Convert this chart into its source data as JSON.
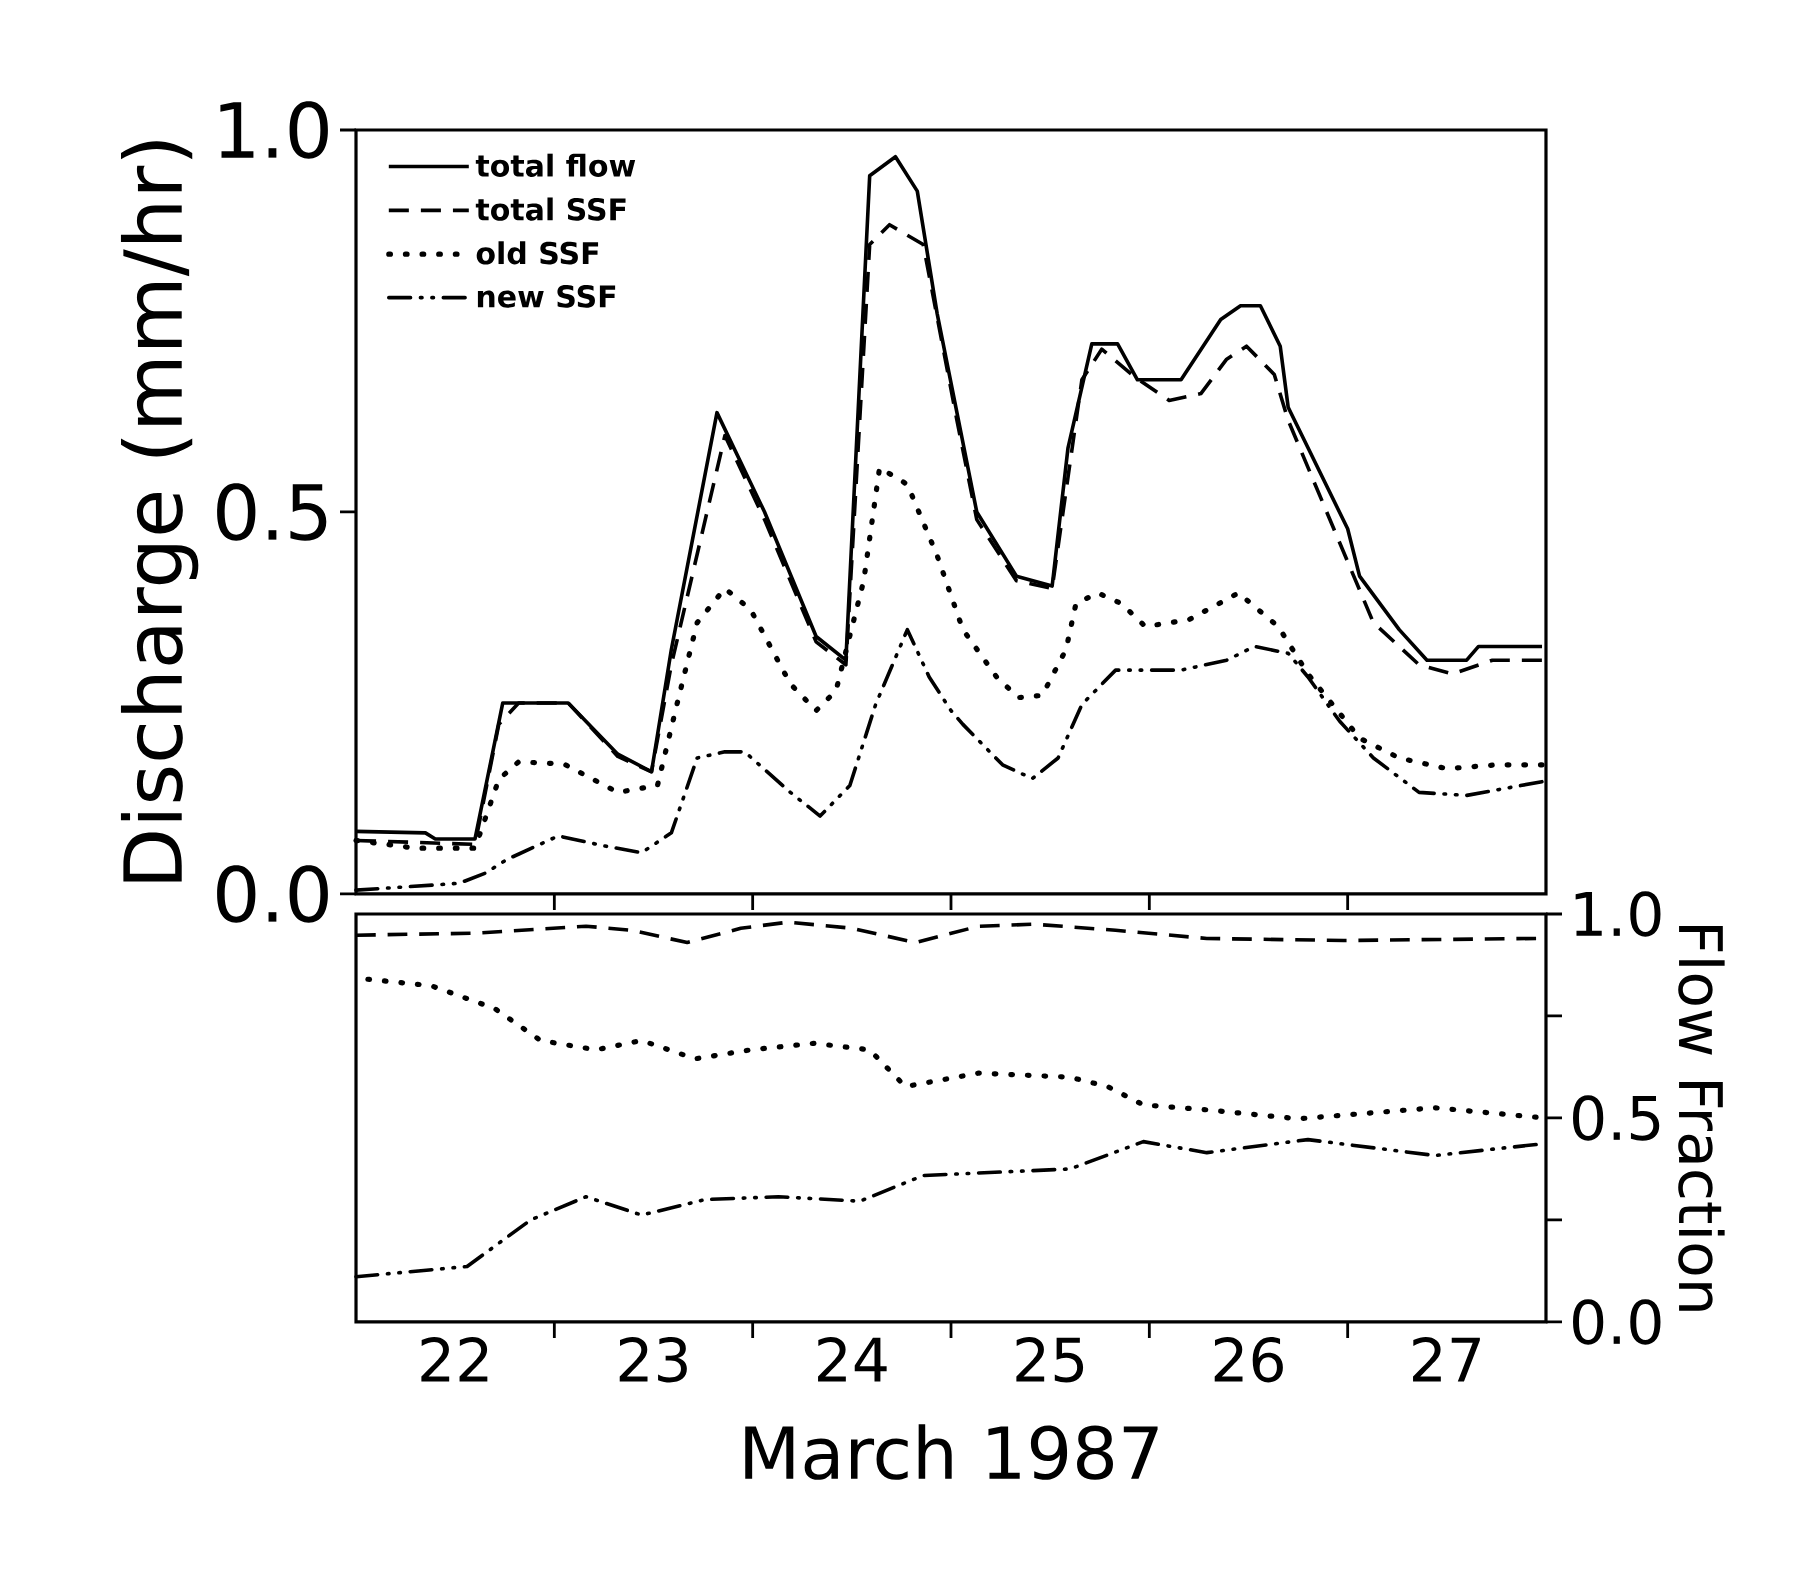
{
  "chart_data": [
    {
      "type": "line",
      "ylabel": "Discharge (mm/hr)",
      "xlim": [
        22,
        28
      ],
      "xticks": [
        {
          "value": 23,
          "label": null
        },
        {
          "value": 24,
          "label": null
        },
        {
          "value": 25,
          "label": null
        },
        {
          "value": 26,
          "label": null
        },
        {
          "value": 27,
          "label": null
        }
      ],
      "ylim": [
        0,
        1
      ],
      "yticks": [
        {
          "value": 0,
          "label": "0.0"
        },
        {
          "value": 0.5,
          "label": "0.5"
        },
        {
          "value": 1,
          "label": "1.0"
        }
      ],
      "tick_labels": "y",
      "legend": "top left",
      "series": [
        {
          "name": "total flow",
          "color": "#000000",
          "line_style": "solid",
          "x": [
            22.0,
            22.35,
            22.4,
            22.6,
            22.74,
            23.07,
            23.32,
            23.49,
            23.59,
            23.82,
            24.06,
            24.32,
            24.47,
            24.59,
            24.72,
            24.83,
            24.93,
            25.03,
            25.13,
            25.33,
            25.51,
            25.59,
            25.71,
            25.84,
            25.94,
            26.16,
            26.36,
            26.46,
            26.56,
            26.66,
            26.7,
            27.0,
            27.06,
            27.26,
            27.4,
            27.6,
            27.66,
            27.98
          ],
          "values": [
            0.082,
            0.08,
            0.072,
            0.072,
            0.25,
            0.25,
            0.183,
            0.16,
            0.32,
            0.63,
            0.5,
            0.337,
            0.306,
            0.94,
            0.965,
            0.92,
            0.76,
            0.63,
            0.5,
            0.416,
            0.403,
            0.584,
            0.72,
            0.72,
            0.673,
            0.673,
            0.752,
            0.77,
            0.77,
            0.717,
            0.637,
            0.478,
            0.416,
            0.346,
            0.306,
            0.306,
            0.324,
            0.324
          ]
        },
        {
          "name": "total SSF",
          "color": "#000000",
          "line_style": "dashed",
          "x": [
            22.0,
            22.6,
            22.72,
            22.82,
            23.07,
            23.32,
            23.49,
            23.59,
            23.86,
            24.06,
            24.32,
            24.47,
            24.59,
            24.69,
            24.86,
            25.03,
            25.13,
            25.33,
            25.51,
            25.66,
            25.76,
            25.93,
            26.1,
            26.26,
            26.39,
            26.49,
            26.63,
            26.7,
            26.93,
            27.13,
            27.36,
            27.53,
            27.73,
            27.98
          ],
          "values": [
            0.07,
            0.065,
            0.222,
            0.25,
            0.25,
            0.18,
            0.16,
            0.3,
            0.6,
            0.49,
            0.33,
            0.3,
            0.85,
            0.876,
            0.85,
            0.62,
            0.49,
            0.41,
            0.4,
            0.673,
            0.713,
            0.676,
            0.646,
            0.655,
            0.7,
            0.717,
            0.68,
            0.62,
            0.478,
            0.355,
            0.3,
            0.288,
            0.306,
            0.306
          ]
        },
        {
          "name": "old SSF",
          "color": "#000000",
          "line_style": "dotted",
          "x": [
            22.0,
            22.3,
            22.6,
            22.72,
            22.82,
            23.05,
            23.32,
            23.52,
            23.62,
            23.72,
            23.86,
            23.99,
            24.19,
            24.32,
            24.42,
            24.56,
            24.64,
            24.78,
            24.93,
            25.06,
            25.23,
            25.34,
            25.46,
            25.58,
            25.63,
            25.74,
            25.86,
            25.98,
            26.2,
            26.45,
            26.65,
            26.8,
            27.06,
            27.26,
            27.5,
            27.75,
            27.98
          ],
          "values": [
            0.07,
            0.06,
            0.06,
            0.15,
            0.173,
            0.17,
            0.133,
            0.142,
            0.25,
            0.355,
            0.4,
            0.372,
            0.275,
            0.24,
            0.266,
            0.41,
            0.558,
            0.536,
            0.443,
            0.346,
            0.284,
            0.257,
            0.26,
            0.32,
            0.38,
            0.394,
            0.38,
            0.35,
            0.359,
            0.394,
            0.35,
            0.288,
            0.204,
            0.178,
            0.164,
            0.169,
            0.169
          ]
        },
        {
          "name": "new SSF",
          "color": "#000000",
          "line_style": "dashdotdotted",
          "x": [
            22.0,
            22.52,
            22.65,
            22.76,
            23.02,
            23.25,
            23.44,
            23.59,
            23.72,
            23.86,
            23.96,
            24.19,
            24.34,
            24.49,
            24.62,
            24.78,
            24.89,
            25.0,
            25.06,
            25.26,
            25.41,
            25.54,
            25.66,
            25.83,
            26.16,
            26.39,
            26.53,
            26.7,
            26.8,
            26.96,
            27.13,
            27.36,
            27.6,
            27.98
          ],
          "values": [
            0.005,
            0.014,
            0.027,
            0.045,
            0.076,
            0.063,
            0.054,
            0.08,
            0.178,
            0.186,
            0.186,
            0.133,
            0.102,
            0.142,
            0.248,
            0.346,
            0.284,
            0.24,
            0.222,
            0.169,
            0.151,
            0.178,
            0.248,
            0.293,
            0.293,
            0.306,
            0.324,
            0.315,
            0.284,
            0.226,
            0.178,
            0.133,
            0.129,
            0.147
          ]
        }
      ]
    },
    {
      "type": "line",
      "xlabel": "March 1987",
      "y2label": "Flow Fraction",
      "xlim": [
        22,
        28
      ],
      "xticks": [
        {
          "value": 22.5,
          "label": "22"
        },
        {
          "value": 23,
          "label": null
        },
        {
          "value": 23.5,
          "label": "23"
        },
        {
          "value": 24,
          "label": null
        },
        {
          "value": 24.5,
          "label": "24"
        },
        {
          "value": 25,
          "label": null
        },
        {
          "value": 25.5,
          "label": "25"
        },
        {
          "value": 26,
          "label": null
        },
        {
          "value": 26.5,
          "label": "26"
        },
        {
          "value": 27,
          "label": null
        },
        {
          "value": 27.5,
          "label": "27"
        }
      ],
      "y2lim": [
        0,
        1
      ],
      "y2ticks": [
        {
          "value": 0,
          "label": "0.0"
        },
        {
          "value": 0.25,
          "label": null
        },
        {
          "value": 0.5,
          "label": "0.5"
        },
        {
          "value": 0.75,
          "label": null
        },
        {
          "value": 1,
          "label": "1.0"
        }
      ],
      "series": [
        {
          "color": "#000000",
          "line_style": "dashed",
          "axis": "y2",
          "x": [
            22.0,
            22.61,
            23.16,
            23.39,
            23.67,
            23.94,
            24.18,
            24.5,
            24.82,
            25.14,
            25.42,
            25.83,
            26.29,
            26.98,
            27.95
          ],
          "values": [
            0.948,
            0.953,
            0.97,
            0.96,
            0.93,
            0.965,
            0.98,
            0.965,
            0.93,
            0.97,
            0.975,
            0.96,
            0.94,
            0.935,
            0.94
          ]
        },
        {
          "color": "#000000",
          "line_style": "dotted",
          "axis": "y2",
          "x": [
            22.06,
            22.38,
            22.7,
            22.93,
            23.21,
            23.44,
            23.71,
            23.99,
            24.31,
            24.59,
            24.77,
            25.14,
            25.6,
            25.79,
            25.97,
            26.29,
            26.75,
            27.44,
            27.95
          ],
          "values": [
            0.84,
            0.824,
            0.768,
            0.69,
            0.667,
            0.69,
            0.645,
            0.667,
            0.683,
            0.667,
            0.577,
            0.61,
            0.6,
            0.577,
            0.532,
            0.52,
            0.498,
            0.525,
            0.502
          ]
        },
        {
          "color": "#000000",
          "line_style": "dashdotdotted",
          "axis": "y2",
          "x": [
            22.0,
            22.56,
            22.88,
            23.16,
            23.44,
            23.76,
            24.13,
            24.54,
            24.86,
            25.6,
            25.97,
            26.29,
            26.8,
            27.44,
            27.95
          ],
          "values": [
            0.111,
            0.136,
            0.25,
            0.307,
            0.262,
            0.3,
            0.307,
            0.296,
            0.359,
            0.375,
            0.442,
            0.415,
            0.447,
            0.408,
            0.435
          ]
        }
      ]
    }
  ]
}
